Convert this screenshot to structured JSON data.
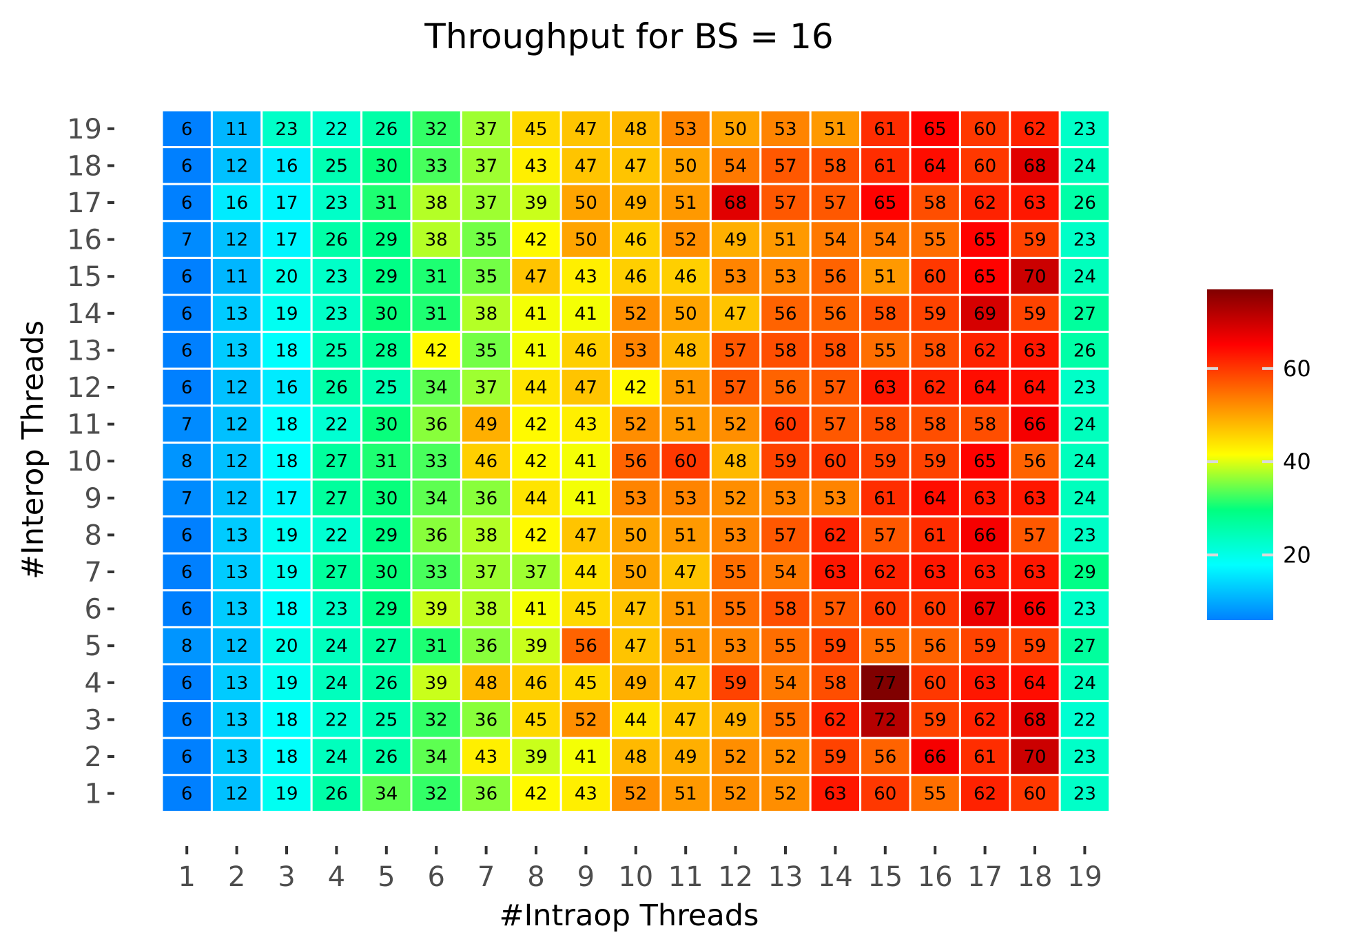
{
  "chart_data": {
    "type": "heatmap",
    "title": "Throughput for BS = 16",
    "xlabel": "#Intraop Threads",
    "ylabel": "#Interop Threads",
    "x": [
      "1",
      "2",
      "3",
      "4",
      "5",
      "6",
      "7",
      "8",
      "9",
      "10",
      "11",
      "12",
      "13",
      "14",
      "15",
      "16",
      "17",
      "18",
      "19"
    ],
    "y": [
      "19",
      "18",
      "17",
      "16",
      "15",
      "14",
      "13",
      "12",
      "11",
      "10",
      "9",
      "8",
      "7",
      "6",
      "5",
      "4",
      "3",
      "2",
      "1"
    ],
    "values": [
      [
        6,
        11,
        23,
        22,
        26,
        32,
        37,
        45,
        47,
        48,
        53,
        50,
        53,
        51,
        61,
        65,
        60,
        62,
        23
      ],
      [
        6,
        12,
        16,
        25,
        30,
        33,
        37,
        43,
        47,
        47,
        50,
        54,
        57,
        58,
        61,
        64,
        60,
        68,
        24
      ],
      [
        6,
        16,
        17,
        23,
        31,
        38,
        37,
        39,
        50,
        49,
        51,
        68,
        57,
        57,
        65,
        58,
        62,
        63,
        26
      ],
      [
        7,
        12,
        17,
        26,
        29,
        38,
        35,
        42,
        50,
        46,
        52,
        49,
        51,
        54,
        54,
        55,
        65,
        59,
        23
      ],
      [
        6,
        11,
        20,
        23,
        29,
        31,
        35,
        47,
        43,
        46,
        46,
        53,
        53,
        56,
        51,
        60,
        65,
        70,
        24
      ],
      [
        6,
        13,
        19,
        23,
        30,
        31,
        38,
        41,
        41,
        52,
        50,
        47,
        56,
        56,
        58,
        59,
        69,
        59,
        27
      ],
      [
        6,
        13,
        18,
        25,
        28,
        42,
        35,
        41,
        46,
        53,
        48,
        57,
        58,
        58,
        55,
        58,
        62,
        63,
        26
      ],
      [
        6,
        12,
        16,
        26,
        25,
        34,
        37,
        44,
        47,
        42,
        51,
        57,
        56,
        57,
        63,
        62,
        64,
        64,
        23
      ],
      [
        7,
        12,
        18,
        22,
        30,
        36,
        49,
        42,
        43,
        52,
        51,
        52,
        60,
        57,
        58,
        58,
        58,
        66,
        24
      ],
      [
        8,
        12,
        18,
        27,
        31,
        33,
        46,
        42,
        41,
        56,
        60,
        48,
        59,
        60,
        59,
        59,
        65,
        56,
        24
      ],
      [
        7,
        12,
        17,
        27,
        30,
        34,
        36,
        44,
        41,
        53,
        53,
        52,
        53,
        53,
        61,
        64,
        63,
        63,
        24
      ],
      [
        6,
        13,
        19,
        22,
        29,
        36,
        38,
        42,
        47,
        50,
        51,
        53,
        57,
        62,
        57,
        61,
        66,
        57,
        23
      ],
      [
        6,
        13,
        19,
        27,
        30,
        33,
        37,
        37,
        44,
        50,
        47,
        55,
        54,
        63,
        62,
        63,
        63,
        63,
        29
      ],
      [
        6,
        13,
        18,
        23,
        29,
        39,
        38,
        41,
        45,
        47,
        51,
        55,
        58,
        57,
        60,
        60,
        67,
        66,
        23
      ],
      [
        8,
        12,
        20,
        24,
        27,
        31,
        36,
        39,
        56,
        47,
        51,
        53,
        55,
        59,
        55,
        56,
        59,
        59,
        27
      ],
      [
        6,
        13,
        19,
        24,
        26,
        39,
        48,
        46,
        45,
        49,
        47,
        59,
        54,
        58,
        77,
        60,
        63,
        64,
        24
      ],
      [
        6,
        13,
        18,
        22,
        25,
        32,
        36,
        45,
        52,
        44,
        47,
        49,
        55,
        62,
        72,
        59,
        62,
        68,
        22
      ],
      [
        6,
        13,
        18,
        24,
        26,
        34,
        43,
        39,
        41,
        48,
        49,
        52,
        52,
        59,
        56,
        66,
        61,
        70,
        23
      ],
      [
        6,
        12,
        19,
        26,
        34,
        32,
        36,
        42,
        43,
        52,
        51,
        52,
        52,
        63,
        60,
        55,
        62,
        60,
        23
      ]
    ],
    "color_range": [
      6,
      77
    ],
    "colormap": [
      "#0080ff",
      "#00ffff",
      "#00ff80",
      "#ffff00",
      "#ff8000",
      "#ff0000",
      "#800000"
    ],
    "colorbar": {
      "ticks": [
        "20",
        "40",
        "60"
      ],
      "tick_values": [
        20,
        40,
        60
      ],
      "position": "right"
    },
    "grid": false
  }
}
